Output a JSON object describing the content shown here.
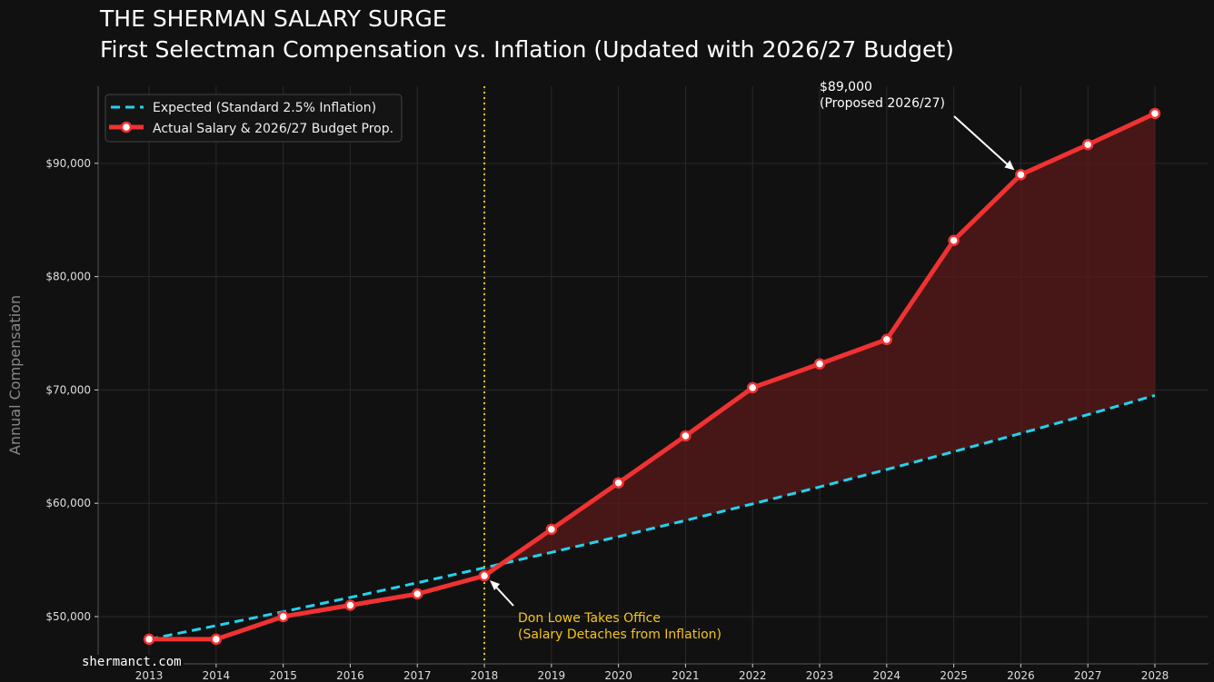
{
  "chart_data": {
    "type": "line",
    "title": "THE SHERMAN SALARY SURGE",
    "subtitle": "First Selectman Compensation vs. Inflation (Updated with 2026/27 Budget)",
    "xlabel": "",
    "ylabel": "Annual Compensation",
    "x": [
      2013,
      2014,
      2015,
      2016,
      2017,
      2018,
      2019,
      2020,
      2021,
      2022,
      2023,
      2024,
      2025,
      2026,
      2027,
      2028
    ],
    "xlim": [
      2012.24,
      2028.8
    ],
    "ylim": [
      45830,
      96800
    ],
    "y_ticks": [
      50000,
      60000,
      70000,
      80000,
      90000
    ],
    "y_tick_labels": [
      "$50,000",
      "$60,000",
      "$70,000",
      "$80,000",
      "$90,000"
    ],
    "grid": true,
    "legend_position": "top-left",
    "series": [
      {
        "name": "Expected (Standard 2.5% Inflation)",
        "style": "dashed",
        "color": "#22d3ee",
        "values": [
          48000,
          49200,
          50430,
          51691,
          52983,
          54308,
          55665,
          57057,
          58483,
          59945,
          61444,
          62980,
          64554,
          66168,
          67823,
          69518
        ]
      },
      {
        "name": "Actual Salary & 2026/27 Budget Prop.",
        "style": "solid-markers",
        "color": "#f03232",
        "values": [
          48000,
          48000,
          50000,
          51000,
          52000,
          53600,
          57700,
          61800,
          65950,
          70200,
          72300,
          74450,
          83200,
          89000,
          91650,
          94400
        ]
      }
    ],
    "shaded_gap": {
      "from_x": 2018,
      "color": "#5a1a1a"
    },
    "vertical_line": {
      "x": 2018,
      "color": "#f5c518",
      "style": "dotted"
    },
    "annotations": [
      {
        "x": 2018,
        "lines": [
          "Don Lowe Takes Office",
          "(Salary Detaches from Inflation)"
        ],
        "color": "#f5c518"
      },
      {
        "x": 2026,
        "lines": [
          "$89,000",
          "(Proposed 2026/27)"
        ],
        "color": "#ffffff"
      }
    ]
  },
  "watermark": "shermanct.com"
}
